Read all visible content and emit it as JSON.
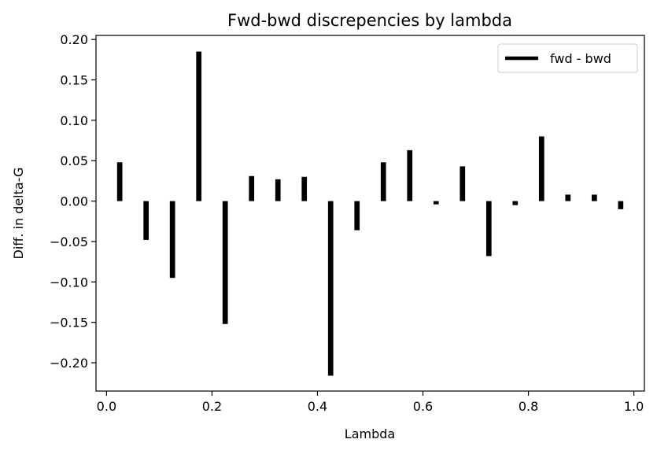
{
  "chart_data": {
    "type": "bar",
    "title": "Fwd-bwd discrepencies by lambda",
    "xlabel": "Lambda",
    "ylabel": "Diff. in delta-G",
    "xlim": [
      -0.02,
      1.02
    ],
    "ylim": [
      -0.235,
      0.205
    ],
    "xticks": [
      0.0,
      0.2,
      0.4,
      0.6,
      0.8,
      1.0
    ],
    "xtick_labels": [
      "0.0",
      "0.2",
      "0.4",
      "0.6",
      "0.8",
      "1.0"
    ],
    "yticks": [
      0.2,
      0.15,
      0.1,
      0.05,
      0.0,
      -0.05,
      -0.1,
      -0.15,
      -0.2
    ],
    "ytick_labels": [
      "0.20",
      "0.15",
      "0.10",
      "0.05",
      "0.00",
      "−0.05",
      "−0.10",
      "−0.15",
      "−0.20"
    ],
    "grid": false,
    "legend": {
      "placement": "top-right",
      "entries": [
        "fwd - bwd"
      ]
    },
    "bar_color": "#000000",
    "bar_width": 0.01,
    "series": [
      {
        "name": "fwd - bwd",
        "x": [
          0.025,
          0.075,
          0.125,
          0.175,
          0.225,
          0.275,
          0.325,
          0.375,
          0.425,
          0.475,
          0.525,
          0.575,
          0.625,
          0.675,
          0.725,
          0.775,
          0.825,
          0.875,
          0.925,
          0.975
        ],
        "values": [
          0.048,
          -0.048,
          -0.095,
          0.185,
          -0.152,
          0.031,
          0.027,
          0.03,
          -0.216,
          -0.036,
          0.048,
          0.063,
          -0.004,
          0.043,
          -0.068,
          -0.005,
          0.08,
          0.008,
          0.008,
          -0.01
        ]
      }
    ]
  }
}
